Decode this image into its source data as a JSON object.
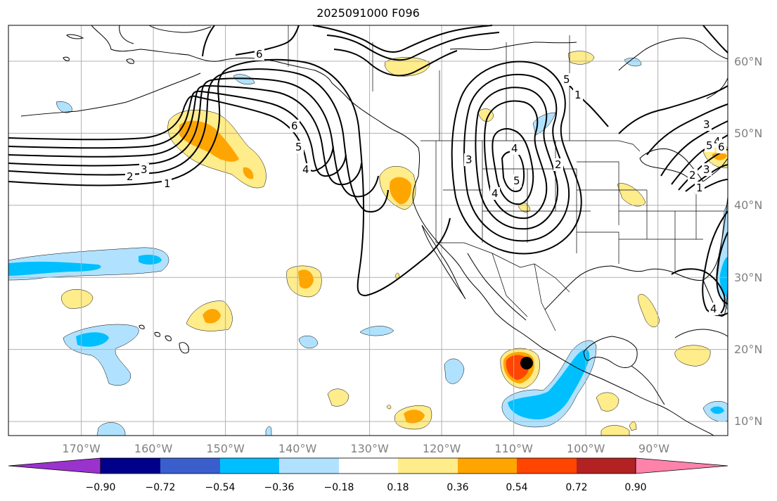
{
  "title": "2025091000 F096",
  "longitude_labels": [
    "170°W",
    "160°W",
    "150°W",
    "140°W",
    "130°W",
    "120°W",
    "110°W",
    "100°W",
    "90°W"
  ],
  "latitude_labels": [
    "60°N",
    "50°N",
    "40°N",
    "30°N",
    "20°N",
    "10°N"
  ],
  "colorbar": {
    "ticks": [
      "−0.90",
      "−0.72",
      "−0.54",
      "−0.36",
      "−0.18",
      "0.18",
      "0.36",
      "0.54",
      "0.72",
      "0.90"
    ],
    "colors": [
      "#9a32cd",
      "#00008b",
      "#3a5fcd",
      "#00bfff",
      "#b0e2ff",
      "#ffffff",
      "#ffec8b",
      "#ffa500",
      "#ff4500",
      "#b22222",
      "#ff82ab"
    ]
  },
  "contour_labels": [
    "1",
    "2",
    "3",
    "4",
    "5",
    "6",
    "6",
    "5",
    "4",
    "1",
    "2",
    "3",
    "4",
    "5",
    "4",
    "3",
    "1",
    "2",
    "3",
    "4",
    "5",
    "6"
  ],
  "fill_colors": {
    "light_yellow": "#ffec8b",
    "orange": "#ffa500",
    "red_orange": "#ff4500",
    "light_blue": "#b0e2ff",
    "deep_sky_blue": "#00bfff"
  },
  "marker_color": "#000000",
  "map": {
    "projection": "cylindrical",
    "lon_range": [
      -180,
      -80
    ],
    "lat_range": [
      8,
      65
    ],
    "features": [
      "coastlines",
      "country borders",
      "us state borders",
      "gridlines"
    ]
  }
}
